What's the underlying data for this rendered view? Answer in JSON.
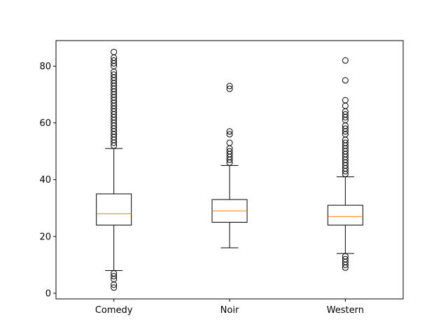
{
  "chart_data": {
    "type": "box",
    "title": "",
    "xlabel": "",
    "ylabel": "",
    "categories": [
      "Comedy",
      "Noir",
      "Western"
    ],
    "ylim": [
      -2,
      89
    ],
    "yticks": [
      0,
      20,
      40,
      60,
      80
    ],
    "grid": false,
    "colors": {
      "box": "#000000",
      "median": "#ff7f0e",
      "outlier_edge": "#000000",
      "background": "#ffffff"
    },
    "boxes": [
      {
        "name": "Comedy",
        "whisker_low": 8,
        "q1": 24,
        "median": 28,
        "q3": 35,
        "whisker_high": 51,
        "outliers": [
          2,
          3,
          5,
          6,
          7,
          52,
          53,
          54,
          55,
          56,
          57,
          58,
          59,
          60,
          61,
          62,
          63,
          64,
          65,
          66,
          67,
          68,
          69,
          70,
          71,
          72,
          73,
          74,
          75,
          76,
          77,
          78,
          80,
          81,
          82,
          83,
          85
        ]
      },
      {
        "name": "Noir",
        "whisker_low": 16,
        "q1": 25,
        "median": 29,
        "q3": 33,
        "whisker_high": 45,
        "outliers": [
          46,
          47,
          48,
          49,
          50,
          51,
          53,
          56,
          57,
          72,
          73
        ]
      },
      {
        "name": "Western",
        "whisker_low": 14,
        "q1": 24,
        "median": 27,
        "q3": 31,
        "whisker_high": 41,
        "outliers": [
          9,
          10,
          11,
          12,
          13,
          42,
          43,
          44,
          45,
          46,
          47,
          48,
          49,
          50,
          51,
          52,
          53,
          54,
          56,
          57,
          58,
          59,
          61,
          62,
          63,
          64,
          66,
          68,
          75,
          82
        ]
      }
    ]
  }
}
